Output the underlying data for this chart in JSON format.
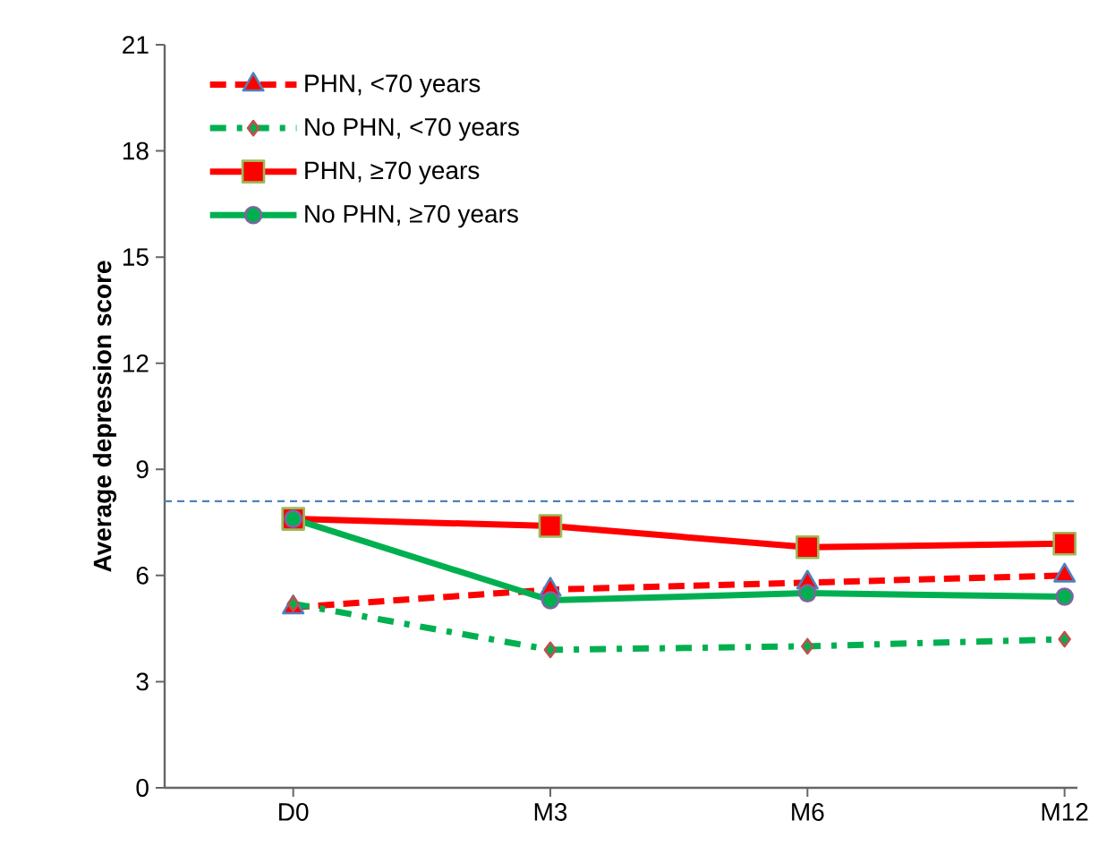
{
  "chart_data": {
    "type": "line",
    "ylabel": "Average depression score",
    "categories": [
      "D0",
      "M3",
      "M6",
      "M12"
    ],
    "ylim": [
      0,
      21
    ],
    "yticks": [
      0,
      3,
      6,
      9,
      12,
      15,
      18,
      21
    ],
    "grid": false,
    "legend": "top left",
    "series": [
      {
        "name": "PHN, <70 years",
        "color": "#ff0000",
        "values": [
          5.1,
          5.6,
          5.8,
          6.0
        ],
        "marker": "triangle",
        "line_style": "dashed"
      },
      {
        "name": "No PHN, <70 years",
        "color": "#00b050",
        "values": [
          5.2,
          3.9,
          4.0,
          4.2
        ],
        "marker": "diamond",
        "line_style": "dashdot"
      },
      {
        "name": "PHN, ≥70 years",
        "color": "#ff0000",
        "values": [
          7.6,
          7.4,
          6.8,
          6.9
        ],
        "marker": "square",
        "line_style": "solid"
      },
      {
        "name": "No PHN, ≥70 years",
        "color": "#00b050",
        "values": [
          7.6,
          5.3,
          5.5,
          5.4
        ],
        "marker": "circle",
        "line_style": "solid"
      }
    ],
    "ref_lines": [
      {
        "axis": "y",
        "value": 8.1,
        "color": "#4f81bd",
        "line_style": "dashed"
      }
    ]
  }
}
